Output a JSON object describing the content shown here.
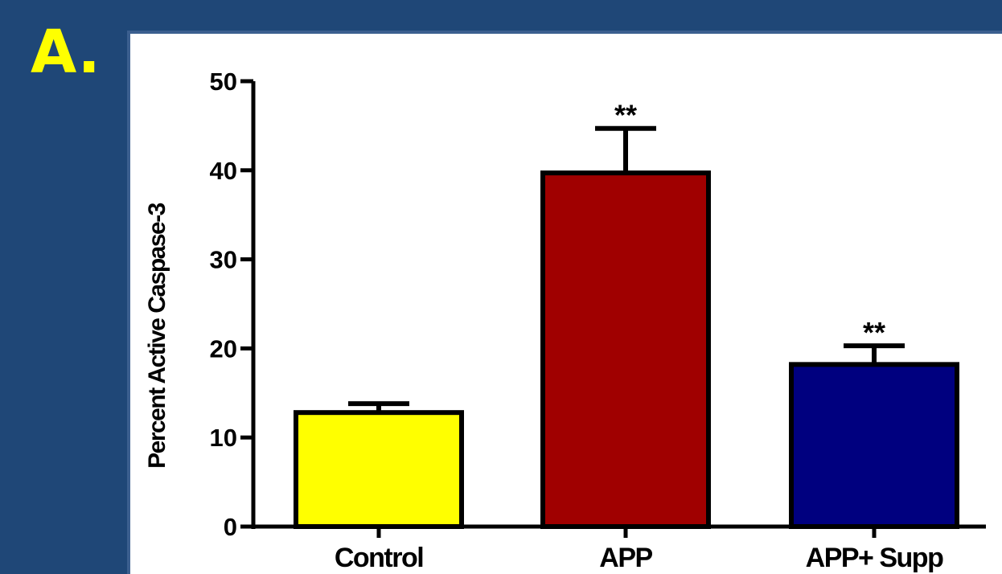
{
  "panel_label": "A.",
  "colors": {
    "background": "#1f4777",
    "panel_label": "#ffff00",
    "chart_background": "#ffffff"
  },
  "chart_data": {
    "type": "bar",
    "title": "",
    "xlabel": "",
    "ylabel": "Percent Active Caspase-3",
    "categories": [
      "Control",
      "APP",
      "APP+ Supp"
    ],
    "values": [
      12.8,
      39.7,
      18.2
    ],
    "errors": [
      1.0,
      5.0,
      2.1
    ],
    "significance": [
      "",
      "**",
      "**"
    ],
    "bar_colors": [
      "#ffff00",
      "#a00000",
      "#00007f"
    ],
    "ylim": [
      0,
      50
    ],
    "yticks": [
      0,
      10,
      20,
      30,
      40,
      50
    ],
    "grid": false,
    "legend": "none"
  }
}
